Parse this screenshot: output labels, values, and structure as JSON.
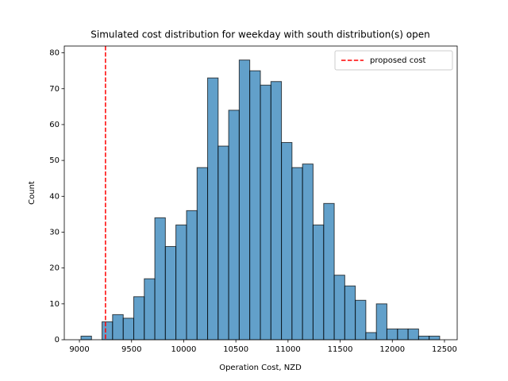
{
  "chart_data": {
    "type": "histogram",
    "title": "Simulated cost distribution for weekday with south distribution(s) open",
    "x_label": "Operation Cost, NZD",
    "y_label": "Count",
    "bins": [
      9015,
      9116,
      9217,
      9318,
      9420,
      9521,
      9622,
      9723,
      9824,
      9925,
      10027,
      10128,
      10229,
      10330,
      10431,
      10532,
      10633,
      10735,
      10836,
      10937,
      11038,
      11139,
      11240,
      11342,
      11443,
      11544,
      11645,
      11746,
      11847,
      11948,
      12050,
      12151,
      12252,
      12353,
      12454
    ],
    "counts": [
      1,
      0,
      5,
      7,
      6,
      12,
      17,
      34,
      26,
      32,
      36,
      48,
      73,
      54,
      64,
      78,
      75,
      71,
      72,
      55,
      48,
      49,
      32,
      38,
      18,
      15,
      11,
      2,
      10,
      3,
      3,
      3,
      1,
      1
    ],
    "color": "#1f77b4",
    "reference_line": {
      "name": "proposed cost",
      "x": 9250,
      "color": "#ff0000"
    },
    "xlim": [
      8855,
      12622
    ],
    "ylim": [
      0,
      81.9
    ],
    "xticks": [
      9000,
      9500,
      10000,
      10500,
      11000,
      11500,
      12000,
      12500
    ],
    "yticks": [
      0,
      10,
      20,
      30,
      40,
      50,
      60,
      70,
      80
    ],
    "grid": false,
    "legend_position": "upper right"
  }
}
